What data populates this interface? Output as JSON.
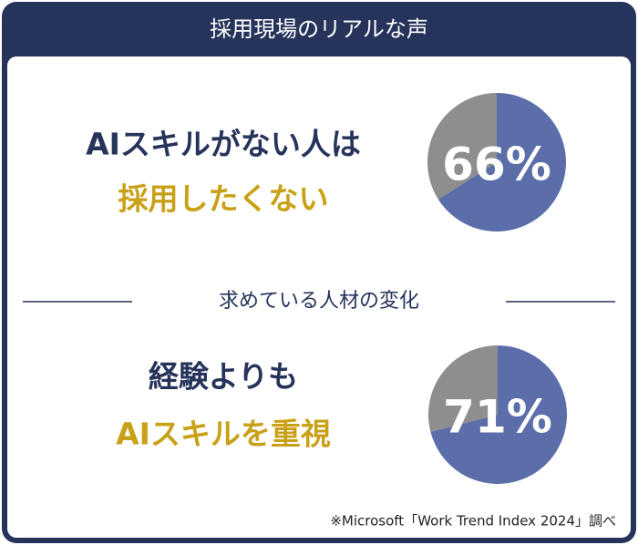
{
  "header": {
    "title": "採用現場のリアルな声"
  },
  "sections": [
    {
      "lines": [
        "AIスキルがない人は",
        "採用したくない"
      ]
    },
    {
      "divider": "求めている人材の変化",
      "lines": [
        "経験よりも",
        "AIスキルを重視"
      ]
    }
  ],
  "chart_data": [
    {
      "type": "pie",
      "values": [
        66,
        34
      ],
      "value_labels": [
        "66%",
        null
      ],
      "colors": [
        "#5b6ea9",
        "#8e8e8e"
      ]
    },
    {
      "type": "pie",
      "values": [
        71,
        29
      ],
      "value_labels": [
        "71%",
        null
      ],
      "colors": [
        "#5b6ea9",
        "#8e8e8e"
      ]
    }
  ],
  "footnote": "※Microsoft「Work Trend Index 2024」調べ"
}
